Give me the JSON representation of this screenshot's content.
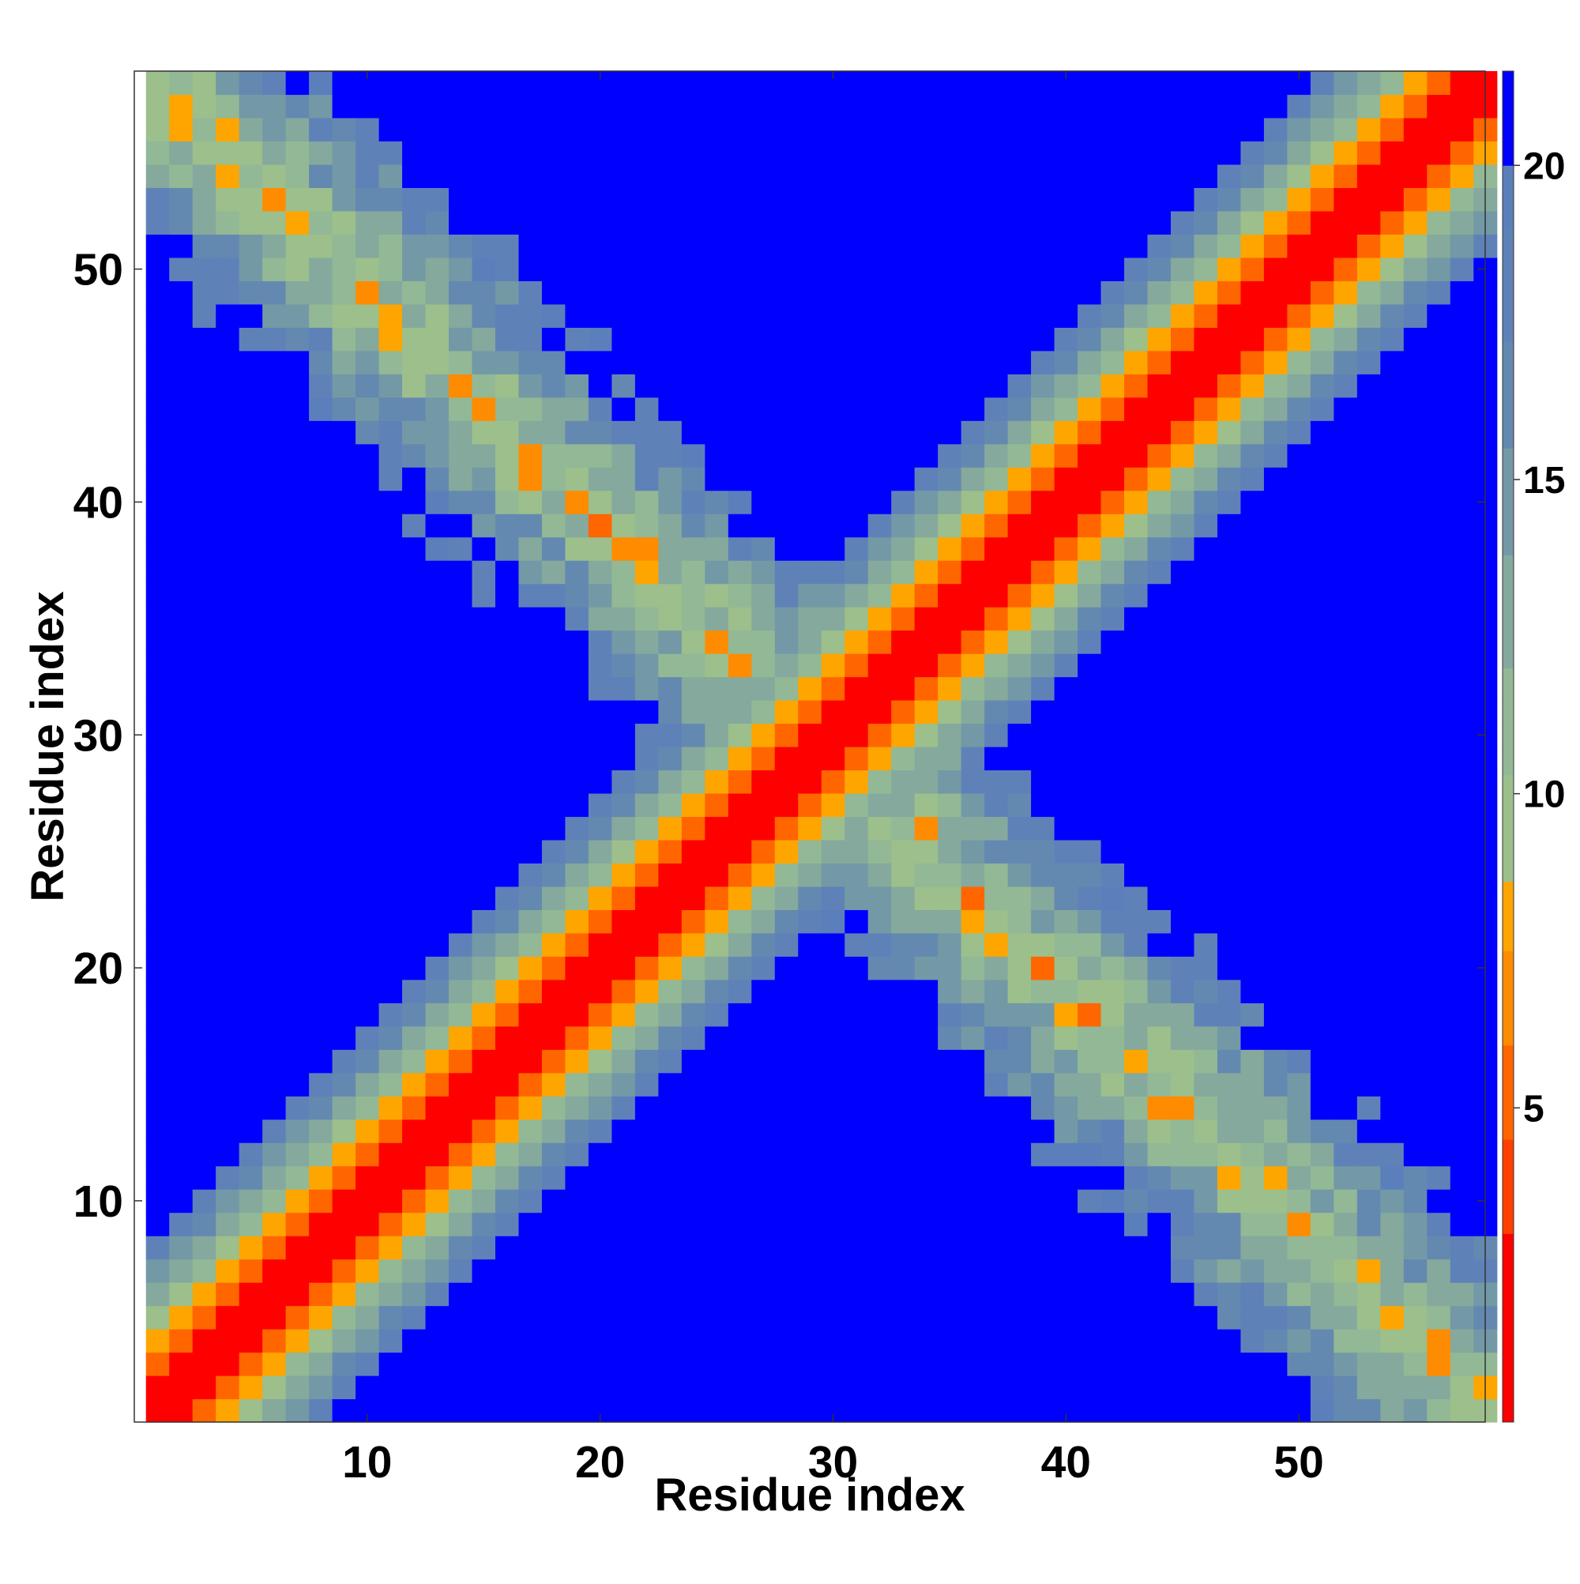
{
  "chart_data": {
    "type": "heatmap",
    "title": "",
    "xlabel": "Residue index",
    "ylabel": "Residue index",
    "n": 58,
    "x_ticks": [
      10,
      20,
      30,
      40,
      50
    ],
    "y_ticks": [
      10,
      20,
      30,
      40,
      50
    ],
    "colorbar_ticks": [
      5,
      10,
      15,
      20
    ],
    "colorbar_range": [
      0,
      21.5
    ],
    "cutoff_value": 21.5,
    "colorscale": [
      {
        "max": 3.0,
        "color": "#ff0000"
      },
      {
        "max": 4.5,
        "color": "#ff4000"
      },
      {
        "max": 6.0,
        "color": "#ff6600"
      },
      {
        "max": 7.5,
        "color": "#ff8c00"
      },
      {
        "max": 8.6,
        "color": "#ffa500"
      },
      {
        "max": 10.3,
        "color": "#9cbf8c"
      },
      {
        "max": 12.0,
        "color": "#92b896"
      },
      {
        "max": 13.8,
        "color": "#85a99c"
      },
      {
        "max": 15.5,
        "color": "#7399a6"
      },
      {
        "max": 17.2,
        "color": "#6489b0"
      },
      {
        "max": 19.0,
        "color": "#5e82b8"
      },
      {
        "max": 20.0,
        "color": "#5b7fbb"
      },
      {
        "max": 999,
        "color": "#0000ff"
      }
    ]
  }
}
